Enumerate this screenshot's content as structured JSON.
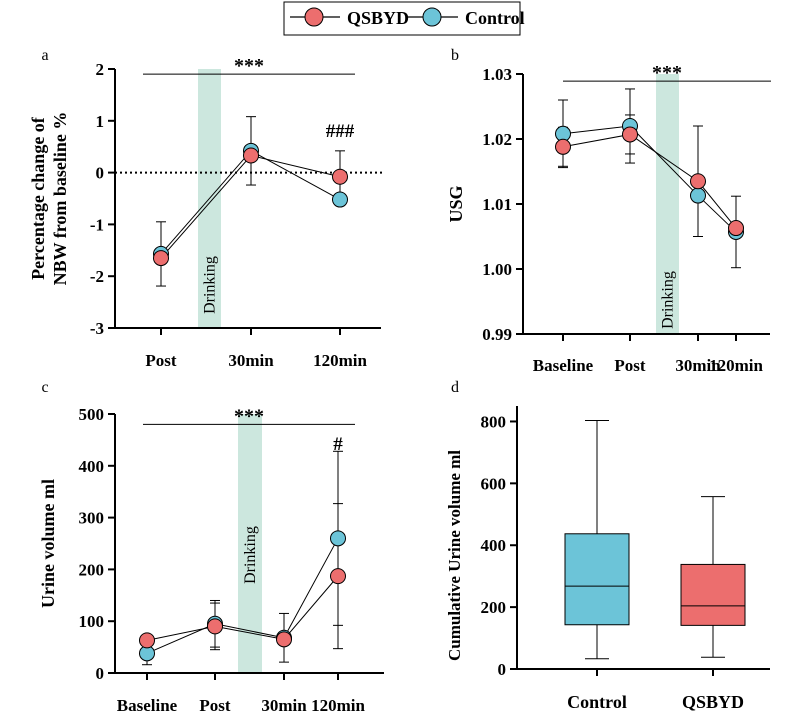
{
  "colors": {
    "qsbyd": "#ec6e6e",
    "control": "#6cc4d8",
    "drinking_band": "#cce7de",
    "axis": "#000000"
  },
  "legend": {
    "items": [
      {
        "name": "QSBYD",
        "color": "#ec6e6e"
      },
      {
        "name": "Control",
        "color": "#6cc4d8"
      }
    ]
  },
  "chart_data": [
    {
      "panel_label": "a",
      "type": "line",
      "categories": [
        "Post",
        "30min",
        "120min"
      ],
      "ylabel_line1": "Percentage change of",
      "ylabel_line2": "NBW from baseline %",
      "ylim": [
        -3,
        2
      ],
      "yticks": [
        "2",
        "1",
        "0",
        "-1",
        "-2",
        "-3"
      ],
      "reference_line": 0,
      "band_label": "Drinking",
      "series": [
        {
          "name": "QSBYD",
          "values": [
            -1.65,
            0.33,
            -0.08
          ],
          "err": [
            null,
            null,
            0.5
          ]
        },
        {
          "name": "Control",
          "values": [
            -1.57,
            0.42,
            -0.52
          ],
          "err": [
            0.62,
            0.66,
            null
          ]
        }
      ],
      "annotations": [
        {
          "text": "***",
          "kind": "span",
          "from": "Post",
          "to": "120min",
          "y": 1.9
        },
        {
          "text": "###",
          "kind": "label",
          "at": "120min",
          "y": 0.8
        }
      ]
    },
    {
      "panel_label": "b",
      "type": "line",
      "categories": [
        "Baseline",
        "Post",
        "30min",
        "120min"
      ],
      "ylabel": "USG",
      "ylim": [
        0.99,
        1.03
      ],
      "yticks": [
        "1.03",
        "1.02",
        "1.01",
        "1.00",
        "0.99"
      ],
      "band_label": "Drinking",
      "series": [
        {
          "name": "QSBYD",
          "values": [
            1.0188,
            1.0207,
            1.0135,
            1.0063
          ],
          "err": [
            0.003,
            0.003,
            0.0085,
            null
          ]
        },
        {
          "name": "Control",
          "values": [
            1.0208,
            1.022,
            1.0113,
            1.0057
          ],
          "err": [
            0.0052,
            0.0057,
            null,
            0.0055
          ]
        }
      ],
      "annotations": [
        {
          "text": "***",
          "kind": "span",
          "from": "Baseline",
          "to": "120min",
          "y": 1.0289
        }
      ]
    },
    {
      "panel_label": "c",
      "type": "line",
      "categories": [
        "Baseline",
        "Post",
        "30min",
        "120min"
      ],
      "ylabel": "Urine volume ml",
      "ylim": [
        0,
        500
      ],
      "yticks": [
        "500",
        "400",
        "300",
        "200",
        "100",
        "0"
      ],
      "band_label": "Drinking",
      "series": [
        {
          "name": "QSBYD",
          "values": [
            63,
            90,
            65,
            187
          ],
          "err": [
            null,
            45,
            null,
            140
          ]
        },
        {
          "name": "Control",
          "values": [
            38,
            95,
            68,
            260
          ],
          "err": [
            22,
            45,
            47,
            168
          ]
        }
      ],
      "annotations": [
        {
          "text": "***",
          "kind": "span",
          "from": "Baseline",
          "to": "120min",
          "y": 480
        },
        {
          "text": "#",
          "kind": "label",
          "at": "120min",
          "y": 442
        }
      ]
    },
    {
      "panel_label": "d",
      "type": "box",
      "ylabel": "Cumulative Urine volume ml",
      "ylim": [
        0,
        850
      ],
      "yticks": [
        "800",
        "600",
        "400",
        "200",
        "0"
      ],
      "boxes": [
        {
          "name": "Control",
          "min": 33,
          "q1": 143,
          "median": 268,
          "q3": 437,
          "max": 803
        },
        {
          "name": "QSBYD",
          "min": 38,
          "q1": 141,
          "median": 204,
          "q3": 338,
          "max": 557
        }
      ]
    }
  ]
}
